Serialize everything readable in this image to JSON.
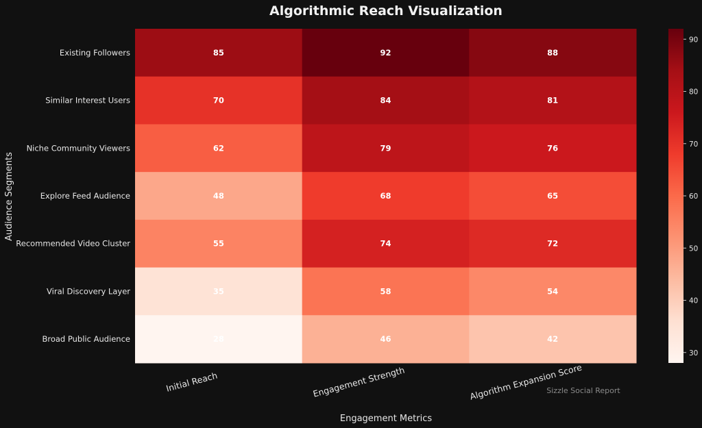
{
  "chart_data": {
    "type": "heatmap",
    "title": "Algorithmic Reach Visualization",
    "xlabel": "Engagement Metrics",
    "ylabel": "Audience Segments",
    "columns": [
      "Initial Reach",
      "Engagement Strength",
      "Algorithm Expansion Score"
    ],
    "rows": [
      "Existing Followers",
      "Similar Interest Users",
      "Niche Community Viewers",
      "Explore Feed Audience",
      "Recommended Video Cluster",
      "Viral Discovery Layer",
      "Broad Public Audience"
    ],
    "values": [
      [
        85,
        92,
        88
      ],
      [
        70,
        84,
        81
      ],
      [
        62,
        79,
        76
      ],
      [
        48,
        68,
        65
      ],
      [
        55,
        74,
        72
      ],
      [
        35,
        58,
        54
      ],
      [
        28,
        46,
        42
      ]
    ],
    "colorbar": {
      "colormap": "Reds",
      "range": [
        28,
        92
      ],
      "ticks": [
        30,
        40,
        50,
        60,
        70,
        80,
        90
      ]
    },
    "watermark": "Sizzle Social Report",
    "colors": {
      "background": "#111111",
      "text": "#e6e6e6",
      "cell_text": "#ffffff"
    }
  }
}
